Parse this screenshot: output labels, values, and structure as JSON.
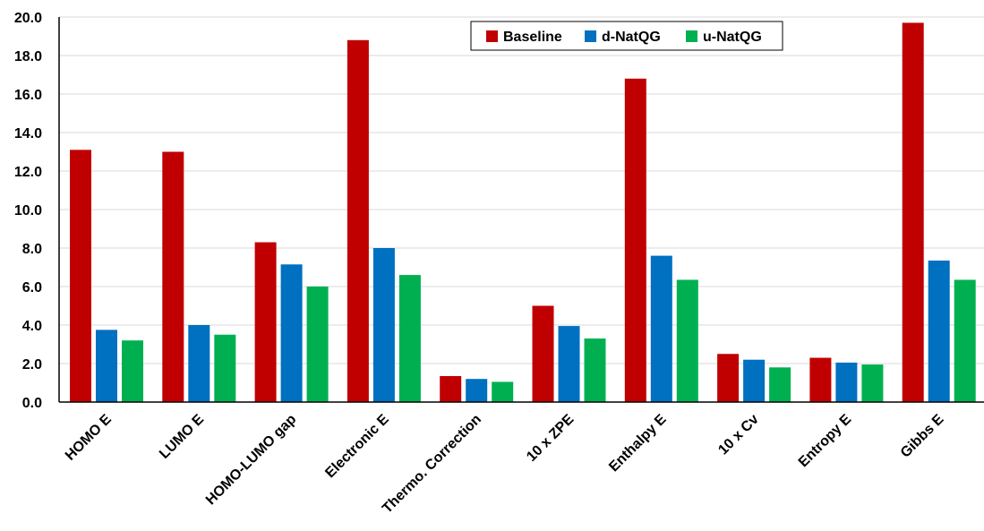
{
  "chart_data": {
    "type": "bar",
    "title": "",
    "xlabel": "",
    "ylabel": "",
    "ylim": [
      0,
      20
    ],
    "ytick_step": 2,
    "grid": true,
    "legend_position": "top-center",
    "categories": [
      "HOMO E",
      "LUMO E",
      "HOMO-LUMO gap",
      "Electronic E",
      "Thermo. Correction",
      "10 x ZPE",
      "Enthalpy E",
      "10 x Cv",
      "Entropy E",
      "Gibbs E"
    ],
    "series": [
      {
        "name": "Baseline",
        "color": "#c00000",
        "values": [
          13.1,
          13.0,
          8.3,
          18.8,
          1.35,
          5.0,
          16.8,
          2.5,
          2.3,
          19.7
        ]
      },
      {
        "name": "d-NatQG",
        "color": "#0070c0",
        "values": [
          3.75,
          4.0,
          7.15,
          8.0,
          1.2,
          3.95,
          7.6,
          2.2,
          2.05,
          7.35
        ]
      },
      {
        "name": "u-NatQG",
        "color": "#00b050",
        "values": [
          3.2,
          3.5,
          6.0,
          6.6,
          1.05,
          3.3,
          6.35,
          1.8,
          1.95,
          6.35
        ]
      }
    ]
  }
}
